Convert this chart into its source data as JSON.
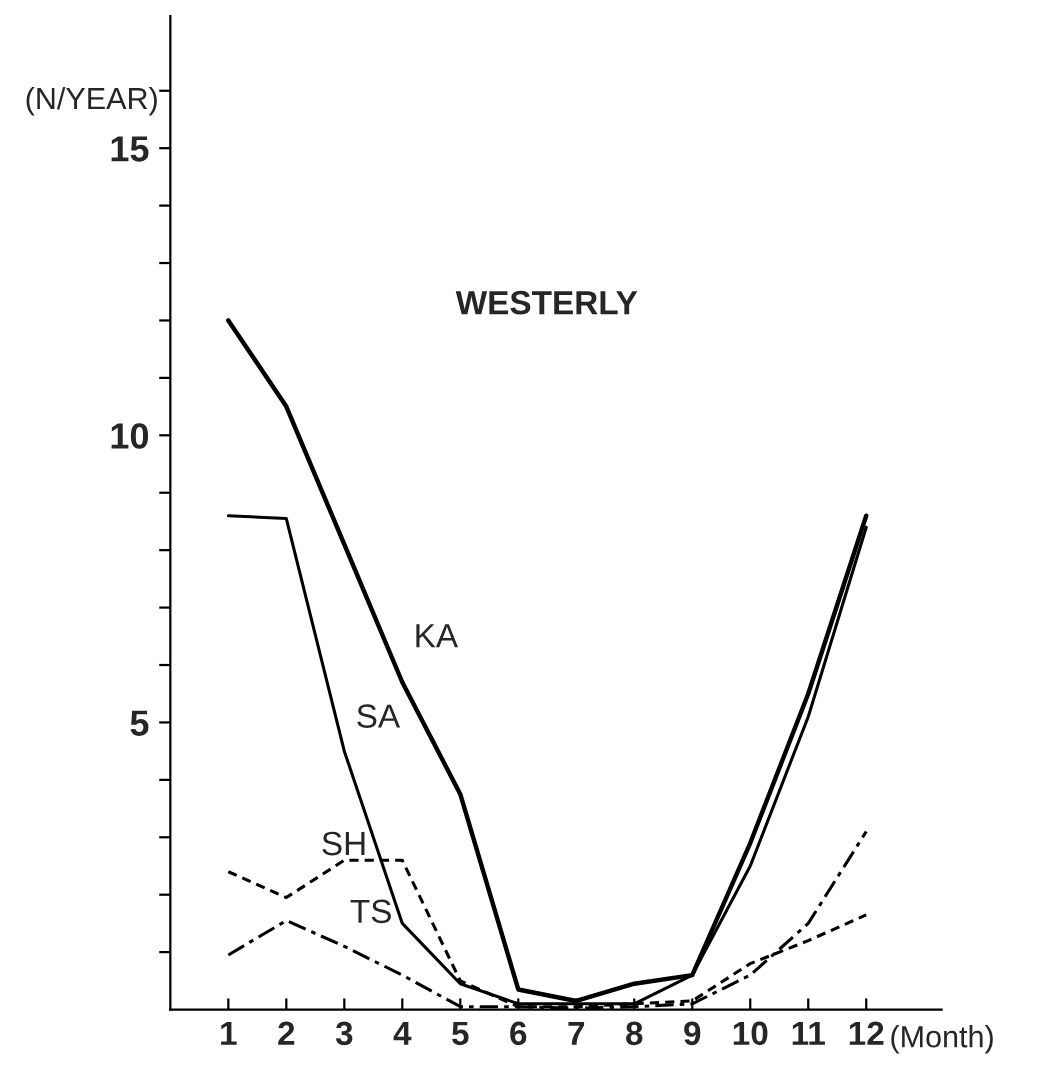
{
  "chart_data": {
    "type": "line",
    "ylabel": "(N/YEAR)",
    "xlabel": "(Month)",
    "x": [
      1,
      2,
      3,
      4,
      5,
      6,
      7,
      8,
      9,
      10,
      11,
      12
    ],
    "series": [
      {
        "color": "#000000",
        "line_style": "solid",
        "values": [
          12.0,
          10.5,
          8.1,
          5.7,
          3.75,
          0.35,
          0.15,
          0.45,
          0.6,
          2.9,
          5.5,
          8.6
        ]
      },
      {
        "color": "#000000",
        "line_style": "solid",
        "values": [
          8.6,
          8.55,
          4.5,
          1.5,
          0.45,
          0.1,
          0.1,
          0.1,
          0.6,
          2.5,
          5.1,
          8.4
        ]
      },
      {
        "color": "#000000",
        "line_style": "dashed",
        "values": [
          2.4,
          1.95,
          2.6,
          2.6,
          0.5,
          0.05,
          0.05,
          0.1,
          0.15,
          0.8,
          1.2,
          1.65
        ]
      },
      {
        "color": "#000000",
        "line_style": "dashdot",
        "values": [
          0.95,
          1.55,
          1.1,
          0.6,
          0.05,
          0.05,
          0.02,
          0.05,
          0.1,
          0.6,
          1.5,
          3.1
        ]
      }
    ],
    "annotations": [
      "WESTERLY",
      {
        "text": "KA",
        "x": 4.1,
        "y": 5.9
      },
      {
        "text": "SA",
        "x": 3.1,
        "y": 4.5
      },
      {
        "text": "SH",
        "x": 2.5,
        "y": 2.28
      },
      {
        "text": "TS",
        "x": 3,
        "y": 1.1
      }
    ],
    "xlim": [
      0,
      13.3
    ],
    "ylim": [
      0,
      17.3
    ],
    "xticks": [
      1,
      2,
      3,
      4,
      5,
      6,
      7,
      8,
      9,
      10,
      11,
      12
    ],
    "yticks": [
      {
        "value": 1,
        "label": null
      },
      {
        "value": 2,
        "label": null
      },
      {
        "value": 3,
        "label": null
      },
      {
        "value": 4,
        "label": null
      },
      5,
      {
        "value": 6,
        "label": null
      },
      {
        "value": 7,
        "label": null
      },
      {
        "value": 8,
        "label": null
      },
      {
        "value": 9,
        "label": null
      },
      10,
      {
        "value": 11,
        "label": null
      },
      {
        "value": 12,
        "label": null
      },
      {
        "value": 13,
        "label": null
      },
      {
        "value": 14,
        "label": null
      },
      15,
      {
        "value": 16,
        "label": null
      }
    ],
    "grid": false,
    "legend": false
  }
}
